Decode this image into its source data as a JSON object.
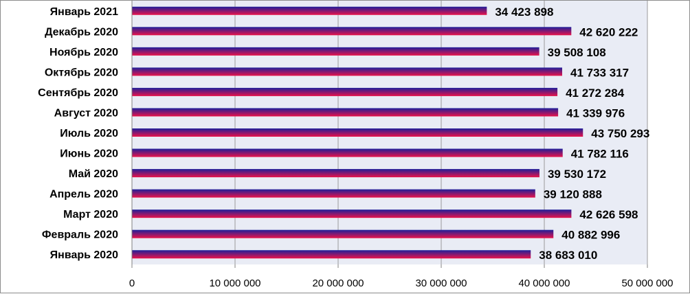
{
  "chart_data": {
    "type": "bar",
    "orientation": "horizontal",
    "categories": [
      "Январь 2021",
      "Декабрь 2020",
      "Ноябрь 2020",
      "Октябрь 2020",
      "Сентябрь 2020",
      "Август 2020",
      "Июль 2020",
      "Июнь 2020",
      "Май 2020",
      "Апрель 2020",
      "Март 2020",
      "Февраль 2020",
      "Январь 2020"
    ],
    "values": [
      34423898,
      42620222,
      39508108,
      41733317,
      41272284,
      41339976,
      43750293,
      41782116,
      39530172,
      39120888,
      42626598,
      40882996,
      38683010
    ],
    "value_labels": [
      "34 423 898",
      "42 620 222",
      "39 508 108",
      "41 733 317",
      "41 272 284",
      "41 339 976",
      "43 750 293",
      "41 782 116",
      "39 530 172",
      "39 120 888",
      "42 626 598",
      "40 882 996",
      "38 683 010"
    ],
    "xlim": [
      0,
      50000000
    ],
    "x_ticks": [
      0,
      10000000,
      20000000,
      30000000,
      40000000,
      50000000
    ],
    "x_tick_labels": [
      "0",
      "10 000 000",
      "20 000 000",
      "30 000 000",
      "40 000 000",
      "50 000 000"
    ],
    "title": "",
    "xlabel": "",
    "ylabel": "",
    "grid": "vertical",
    "legend": "none",
    "colors": {
      "bar_top": "#1f1f9a",
      "bar_bottom": "#e8134a",
      "plot_bg": "#e9ecf5",
      "grid": "#9a9a9a"
    }
  }
}
